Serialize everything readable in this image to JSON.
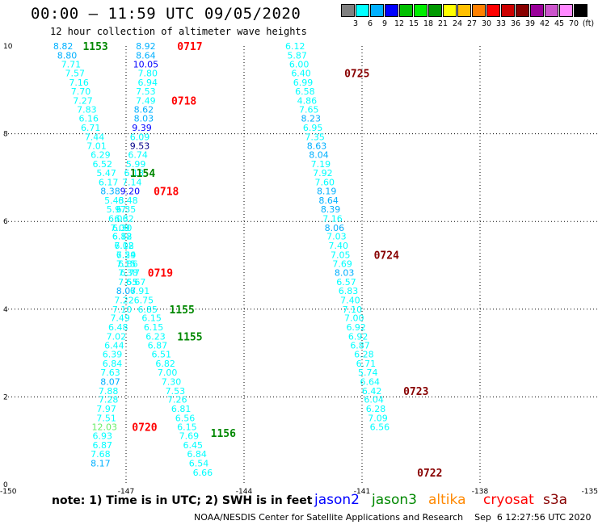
{
  "header": {
    "title": "00:00 – 11:59 UTC 09/05/2020",
    "subtitle": "12 hour collection of altimeter wave heights"
  },
  "legend": {
    "colors": [
      "#808080",
      "#00ffff",
      "#00b0ff",
      "#0000ff",
      "#00bf00",
      "#00ee00",
      "#009900",
      "#ffff00",
      "#ffc000",
      "#ff8000",
      "#ff0000",
      "#cc0000",
      "#880000",
      "#990099",
      "#cc55cc",
      "#ff88ff",
      "#000000"
    ],
    "labels": [
      "3",
      "6",
      "9",
      "12",
      "15",
      "18",
      "21",
      "24",
      "27",
      "30",
      "33",
      "36",
      "39",
      "42",
      "45",
      "70",
      "(ft)"
    ]
  },
  "note": "note: 1) Time is in UTC; 2) SWH is in feet",
  "satellites": [
    {
      "name": "jason2",
      "color": "#0000ff"
    },
    {
      "name": "jason3",
      "color": "#008800"
    },
    {
      "name": "altika",
      "color": "#ff8800"
    },
    {
      "name": "cryosat",
      "color": "#ff0000"
    },
    {
      "name": "s3a",
      "color": "#880000"
    }
  ],
  "credit": "NOAA/NESDIS Center for Satellite Applications and Research    Sep  6 12:27:56 UTC 2020",
  "chart_data": {
    "type": "scatter",
    "x_ticks": [
      "-150",
      "-147",
      "-144",
      "-141",
      "-138",
      "-135"
    ],
    "y_ticks": [
      "0",
      "2",
      "4",
      "6",
      "8",
      "10"
    ],
    "xlim": [
      -150,
      -135
    ],
    "ylim": [
      0,
      10
    ],
    "grid": "dotted",
    "series": [
      {
        "name": "jason3",
        "points": [
          [
            -148.6,
            10,
            "8.82",
            "#00b0ff"
          ],
          [
            -148.5,
            9.79,
            "8.80",
            "#00b0ff"
          ],
          [
            -148.4,
            9.59,
            "7.71",
            "#00ffff"
          ],
          [
            -148.3,
            9.38,
            "7.57",
            "#00ffff"
          ],
          [
            -148.2,
            9.17,
            "7.16",
            "#00ffff"
          ],
          [
            -148.15,
            8.97,
            "7.70",
            "#00ffff"
          ],
          [
            -148.1,
            8.76,
            "7.27",
            "#00ffff"
          ],
          [
            -148,
            8.55,
            "7.83",
            "#00ffff"
          ],
          [
            -147.95,
            8.35,
            "6.16",
            "#00ffff"
          ],
          [
            -147.9,
            8.14,
            "6.71",
            "#00ffff"
          ],
          [
            -147.8,
            7.93,
            "7.44",
            "#00ffff"
          ],
          [
            -147.75,
            7.73,
            "7.01",
            "#00ffff"
          ],
          [
            -147.65,
            7.52,
            "6.29",
            "#00ffff"
          ],
          [
            -147.6,
            7.31,
            "6.52",
            "#00ffff"
          ],
          [
            -147.5,
            7.11,
            "5.47",
            "#00ffff"
          ],
          [
            -147.45,
            6.9,
            "6.17",
            "#00ffff"
          ],
          [
            -147.4,
            6.69,
            "8.38",
            "#00b0ff"
          ],
          [
            -147.3,
            6.48,
            "5.43",
            "#00ffff"
          ],
          [
            -147.25,
            6.28,
            "5.97",
            "#00ffff"
          ],
          [
            -147.2,
            6.07,
            "6.06",
            "#00ffff"
          ],
          [
            -147.15,
            5.86,
            "7.09",
            "#00ffff"
          ],
          [
            -147.1,
            5.66,
            "6.82",
            "#00ffff"
          ],
          [
            -147.05,
            5.45,
            "7.12",
            "#00ffff"
          ],
          [
            -147,
            5.24,
            "7.24",
            "#00ffff"
          ],
          [
            -147,
            5.04,
            "7.15",
            "#00ffff"
          ],
          [
            -146.95,
            4.83,
            "7.38",
            "#00ffff"
          ],
          [
            -146.95,
            4.62,
            "7.55",
            "#00ffff"
          ],
          [
            -147,
            4.42,
            "8.07",
            "#00b0ff"
          ],
          [
            -147.05,
            4.21,
            "7.22",
            "#00ffff"
          ],
          [
            -147.1,
            4,
            "7.10",
            "#00ffff"
          ],
          [
            -147.15,
            3.8,
            "7.49",
            "#00ffff"
          ],
          [
            -147.2,
            3.59,
            "6.48",
            "#00ffff"
          ],
          [
            -147.25,
            3.38,
            "7.02",
            "#00ffff"
          ],
          [
            -147.3,
            3.18,
            "6.44",
            "#00ffff"
          ],
          [
            -147.35,
            2.97,
            "6.39",
            "#00ffff"
          ],
          [
            -147.35,
            2.76,
            "6.84",
            "#00ffff"
          ],
          [
            -147.4,
            2.56,
            "7.63",
            "#00ffff"
          ],
          [
            -147.4,
            2.35,
            "8.07",
            "#00b0ff"
          ],
          [
            -147.45,
            2.14,
            "7.88",
            "#00ffff"
          ],
          [
            -147.45,
            1.94,
            "7.28",
            "#00ffff"
          ],
          [
            -147.5,
            1.73,
            "7.97",
            "#00ffff"
          ],
          [
            -147.5,
            1.52,
            "7.51",
            "#00ffff"
          ],
          [
            -147.55,
            1.32,
            "12.03",
            "#66ee66"
          ],
          [
            -147.6,
            1.11,
            "6.93",
            "#00ffff"
          ],
          [
            -147.6,
            0.9,
            "6.87",
            "#00ffff"
          ],
          [
            -147.65,
            0.7,
            "7.68",
            "#00ffff"
          ],
          [
            -147.65,
            0.49,
            "8.17",
            "#00b0ff"
          ]
        ]
      },
      {
        "name": "jason2",
        "points": [
          [
            -146.5,
            10,
            "8.92",
            "#00b0ff"
          ],
          [
            -146.5,
            9.79,
            "8.64",
            "#00b0ff"
          ],
          [
            -146.5,
            9.59,
            "10.05",
            "#0000ff"
          ],
          [
            -146.45,
            9.38,
            "7.80",
            "#00ffff"
          ],
          [
            -146.45,
            9.17,
            "6.94",
            "#00ffff"
          ],
          [
            -146.5,
            8.97,
            "7.53",
            "#00ffff"
          ],
          [
            -146.5,
            8.76,
            "7.49",
            "#00ffff"
          ],
          [
            -146.55,
            8.55,
            "8.62",
            "#00b0ff"
          ],
          [
            -146.55,
            8.35,
            "8.03",
            "#00b0ff"
          ],
          [
            -146.6,
            8.14,
            "9.39",
            "#0000ff"
          ],
          [
            -146.65,
            7.93,
            "6.09",
            "#00ffff"
          ],
          [
            -146.65,
            7.73,
            "9.53",
            "#000088"
          ],
          [
            -146.7,
            7.52,
            "6.74",
            "#00ffff"
          ],
          [
            -146.75,
            7.31,
            "5.99",
            "#00ffff"
          ],
          [
            -146.8,
            7.11,
            "6.18",
            "#00ffff"
          ],
          [
            -146.85,
            6.9,
            "7.14",
            "#00ffff"
          ],
          [
            -146.9,
            6.69,
            "9.20",
            "#0000ff"
          ],
          [
            -146.95,
            6.48,
            "6.48",
            "#00ffff"
          ],
          [
            -147,
            6.28,
            "6.35",
            "#00ffff"
          ],
          [
            -147.05,
            6.07,
            "6.32",
            "#00ffff"
          ],
          [
            -147.1,
            5.86,
            "6.30",
            "#00ffff"
          ],
          [
            -147.1,
            5.66,
            "6.18",
            "#00ffff"
          ],
          [
            -147.05,
            5.45,
            "6.08",
            "#00ffff"
          ],
          [
            -147,
            5.24,
            "6.59",
            "#00ffff"
          ],
          [
            -146.95,
            5.04,
            "6.86",
            "#00ffff"
          ],
          [
            -146.9,
            4.83,
            "6.77",
            "#00ffff"
          ],
          [
            -146.75,
            4.62,
            "6.67",
            "#00ffff"
          ],
          [
            -146.65,
            4.42,
            "6.91",
            "#00ffff"
          ],
          [
            -146.55,
            4.21,
            "6.75",
            "#00ffff"
          ],
          [
            -146.45,
            4,
            "6.85",
            "#00ffff"
          ],
          [
            -146.35,
            3.8,
            "6.15",
            "#00ffff"
          ],
          [
            -146.3,
            3.59,
            "6.15",
            "#00ffff"
          ],
          [
            -146.25,
            3.38,
            "6.23",
            "#00ffff"
          ],
          [
            -146.2,
            3.18,
            "6.87",
            "#00ffff"
          ],
          [
            -146.1,
            2.97,
            "6.51",
            "#00ffff"
          ],
          [
            -146,
            2.76,
            "6.82",
            "#00ffff"
          ],
          [
            -145.95,
            2.56,
            "7.00",
            "#00ffff"
          ],
          [
            -145.85,
            2.35,
            "7.30",
            "#00ffff"
          ],
          [
            -145.75,
            2.14,
            "7.53",
            "#00ffff"
          ],
          [
            -145.7,
            1.94,
            "7.26",
            "#00ffff"
          ],
          [
            -145.6,
            1.73,
            "6.81",
            "#00ffff"
          ],
          [
            -145.5,
            1.52,
            "6.56",
            "#00ffff"
          ],
          [
            -145.45,
            1.32,
            "6.15",
            "#00ffff"
          ],
          [
            -145.4,
            1.11,
            "7.69",
            "#00ffff"
          ],
          [
            -145.3,
            0.9,
            "6.45",
            "#00ffff"
          ],
          [
            -145.2,
            0.7,
            "6.84",
            "#00ffff"
          ],
          [
            -145.15,
            0.49,
            "6.54",
            "#00ffff"
          ],
          [
            -145.05,
            0.28,
            "6.66",
            "#00ffff"
          ]
        ]
      },
      {
        "name": "s3a",
        "points": [
          [
            -142.7,
            10,
            "6.12",
            "#00ffff"
          ],
          [
            -142.65,
            9.79,
            "5.87",
            "#00ffff"
          ],
          [
            -142.6,
            9.59,
            "6.00",
            "#00ffff"
          ],
          [
            -142.55,
            9.38,
            "6.40",
            "#00ffff"
          ],
          [
            -142.5,
            9.17,
            "6.99",
            "#00ffff"
          ],
          [
            -142.45,
            8.97,
            "6.58",
            "#00ffff"
          ],
          [
            -142.4,
            8.76,
            "4.86",
            "#00ffff"
          ],
          [
            -142.35,
            8.55,
            "7.65",
            "#00ffff"
          ],
          [
            -142.3,
            8.35,
            "8.23",
            "#00b0ff"
          ],
          [
            -142.25,
            8.14,
            "6.95",
            "#00ffff"
          ],
          [
            -142.2,
            7.93,
            "7.35",
            "#00ffff"
          ],
          [
            -142.15,
            7.73,
            "8.63",
            "#00b0ff"
          ],
          [
            -142.1,
            7.52,
            "8.04",
            "#00b0ff"
          ],
          [
            -142.05,
            7.31,
            "7.19",
            "#00ffff"
          ],
          [
            -142,
            7.11,
            "7.92",
            "#00ffff"
          ],
          [
            -141.95,
            6.9,
            "7.60",
            "#00ffff"
          ],
          [
            -141.9,
            6.69,
            "8.19",
            "#00b0ff"
          ],
          [
            -141.85,
            6.48,
            "8.64",
            "#00b0ff"
          ],
          [
            -141.8,
            6.28,
            "8.39",
            "#00b0ff"
          ],
          [
            -141.75,
            6.07,
            "7.16",
            "#00ffff"
          ],
          [
            -141.7,
            5.86,
            "8.06",
            "#00b0ff"
          ],
          [
            -141.65,
            5.66,
            "7.03",
            "#00ffff"
          ],
          [
            -141.6,
            5.45,
            "7.40",
            "#00ffff"
          ],
          [
            -141.55,
            5.24,
            "7.05",
            "#00ffff"
          ],
          [
            -141.5,
            5.04,
            "7.69",
            "#00ffff"
          ],
          [
            -141.45,
            4.83,
            "8.03",
            "#00b0ff"
          ],
          [
            -141.4,
            4.62,
            "6.57",
            "#00ffff"
          ],
          [
            -141.35,
            4.42,
            "6.83",
            "#00ffff"
          ],
          [
            -141.3,
            4.21,
            "7.40",
            "#00ffff"
          ],
          [
            -141.25,
            4,
            "7.10",
            "#00ffff"
          ],
          [
            -141.2,
            3.8,
            "7.00",
            "#00ffff"
          ],
          [
            -141.15,
            3.59,
            "6.92",
            "#00ffff"
          ],
          [
            -141.1,
            3.38,
            "6.92",
            "#00ffff"
          ],
          [
            -141.05,
            3.18,
            "6.87",
            "#00ffff"
          ],
          [
            -140.95,
            2.97,
            "6.28",
            "#00ffff"
          ],
          [
            -140.9,
            2.76,
            "6.71",
            "#00ffff"
          ],
          [
            -140.85,
            2.56,
            "5.74",
            "#00ffff"
          ],
          [
            -140.8,
            2.35,
            "6.64",
            "#00ffff"
          ],
          [
            -140.75,
            2.14,
            "6.42",
            "#00ffff"
          ],
          [
            -140.7,
            1.94,
            "6.04",
            "#00ffff"
          ],
          [
            -140.65,
            1.73,
            "6.28",
            "#00ffff"
          ],
          [
            -140.6,
            1.52,
            "7.09",
            "#00ffff"
          ],
          [
            -140.55,
            1.32,
            "6.56",
            "#00ffff"
          ]
        ]
      }
    ],
    "time_labels": [
      {
        "text": "1153",
        "x": -148.1,
        "y": 10,
        "color": "#008800"
      },
      {
        "text": "0717",
        "x": -145.7,
        "y": 10,
        "color": "#ff0000"
      },
      {
        "text": "0725",
        "x": -141.45,
        "y": 9.38,
        "color": "#880000"
      },
      {
        "text": "0718",
        "x": -145.85,
        "y": 8.76,
        "color": "#ff0000"
      },
      {
        "text": "1154",
        "x": -146.9,
        "y": 7.11,
        "color": "#008800"
      },
      {
        "text": "0718",
        "x": -146.3,
        "y": 6.69,
        "color": "#ff0000"
      },
      {
        "text": "0724",
        "x": -140.7,
        "y": 5.24,
        "color": "#880000"
      },
      {
        "text": "0719",
        "x": -146.45,
        "y": 4.83,
        "color": "#ff0000"
      },
      {
        "text": "1155",
        "x": -145.9,
        "y": 4.0,
        "color": "#008800"
      },
      {
        "text": "1155",
        "x": -145.7,
        "y": 3.38,
        "color": "#008800"
      },
      {
        "text": "0723",
        "x": -139.95,
        "y": 2.14,
        "color": "#880000"
      },
      {
        "text": "0720",
        "x": -146.85,
        "y": 1.32,
        "color": "#ff0000"
      },
      {
        "text": "1156",
        "x": -144.85,
        "y": 1.18,
        "color": "#008800"
      },
      {
        "text": "0722",
        "x": -139.6,
        "y": 0.28,
        "color": "#880000"
      }
    ]
  }
}
